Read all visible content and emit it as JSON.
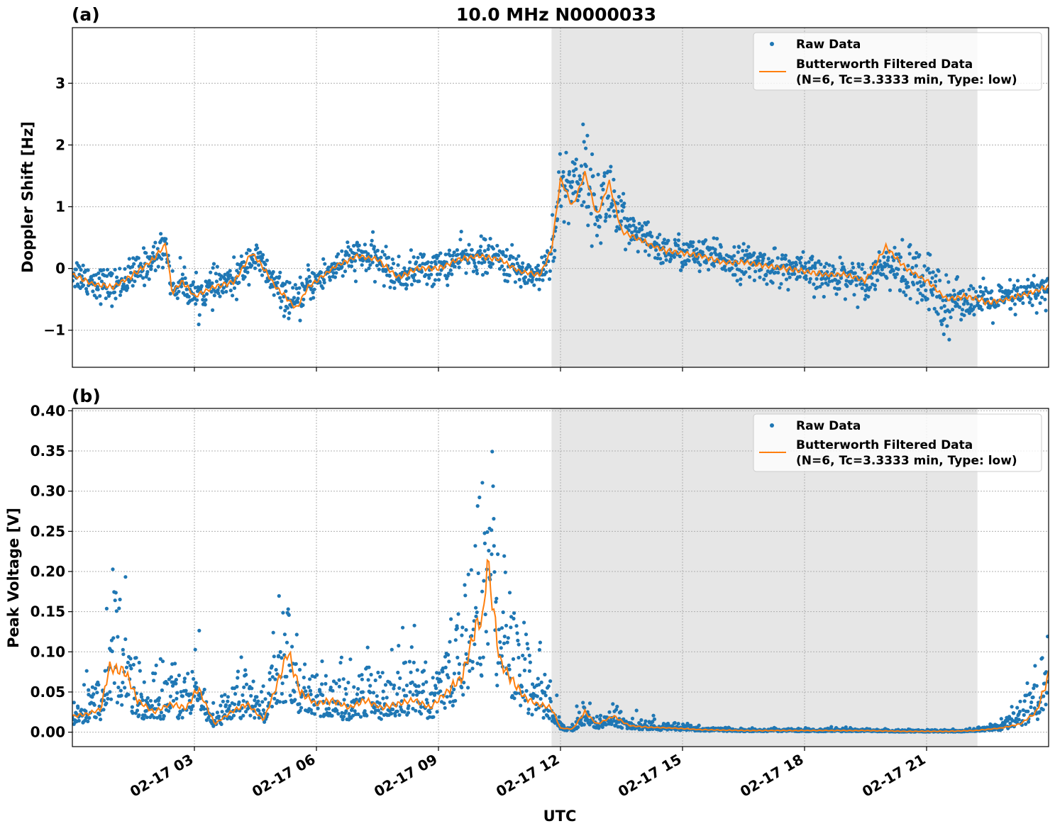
{
  "figure": {
    "title": "10.0 MHz N0000033",
    "xlabel": "UTC",
    "x_tick_labels": [
      "02-17 03",
      "02-17 06",
      "02-17 09",
      "02-17 12",
      "02-17 15",
      "02-17 18",
      "02-17 21"
    ],
    "shaded_interval_hours": [
      11.78,
      22.25
    ],
    "colors": {
      "raw": "#1f77b4",
      "filtered": "#ff7f0e",
      "shade": "#e6e6e6"
    },
    "legend": {
      "placement": "top-right",
      "raw_label": "Raw Data",
      "filtered_label_line1": "Butterworth Filtered Data",
      "filtered_label_line2": "(N=6, Tc=3.3333 min, Type: low)"
    }
  },
  "chart_data": [
    {
      "type": "scatter",
      "panel_label": "(a)",
      "title": "10.0 MHz N0000033",
      "ylabel": "Doppler Shift [Hz]",
      "xlabel": "",
      "x_unit": "hours UTC on 02-17",
      "xlim": [
        0,
        24
      ],
      "ylim": [
        -1.6,
        3.9
      ],
      "y_ticks": [
        -1,
        0,
        1,
        2,
        3
      ],
      "y_tick_labels": [
        "−1",
        "0",
        "1",
        "2",
        "3"
      ],
      "grid": true,
      "legend": "top-right",
      "series": [
        {
          "name": "Raw Data",
          "style": "points",
          "x": [
            0,
            0.5,
            1,
            1.5,
            2,
            2.3,
            2.45,
            2.7,
            3,
            3.5,
            4,
            4.4,
            4.6,
            5,
            5.3,
            5.5,
            5.8,
            6,
            6.5,
            7,
            7.5,
            8,
            8.5,
            9,
            9.5,
            10,
            10.5,
            11,
            11.5,
            11.78,
            12,
            12.3,
            12.6,
            12.9,
            13.2,
            13.5,
            14,
            14.5,
            15,
            15.5,
            16,
            16.5,
            17,
            17.5,
            18,
            18.5,
            19,
            19.5,
            20,
            20.5,
            21,
            21.5,
            22,
            22.5,
            23,
            23.5,
            24
          ],
          "y": [
            -0.05,
            -0.2,
            -0.3,
            -0.1,
            0.15,
            0.4,
            -0.35,
            -0.2,
            -0.45,
            -0.3,
            -0.2,
            0.2,
            0.1,
            -0.3,
            -0.5,
            -0.6,
            -0.25,
            -0.2,
            0.05,
            0.2,
            0.15,
            -0.15,
            0,
            0,
            0.15,
            0.2,
            0.15,
            -0.05,
            -0.1,
            0.3,
            1.3,
            1.4,
            1.6,
            0.9,
            1.3,
            0.65,
            0.5,
            0.3,
            0.25,
            0.2,
            0.15,
            0.1,
            0.05,
            0,
            -0.05,
            -0.15,
            -0.1,
            -0.2,
            0.1,
            -0.1,
            -0.3,
            -0.5,
            -0.5,
            -0.55,
            -0.5,
            -0.4,
            -0.35
          ]
        },
        {
          "name": "Butterworth Filtered Data",
          "style": "line",
          "x": [
            0,
            0.5,
            1,
            1.5,
            2,
            2.3,
            2.45,
            2.7,
            3,
            3.5,
            4,
            4.4,
            4.6,
            5,
            5.3,
            5.5,
            5.8,
            6,
            6.5,
            7,
            7.5,
            8,
            8.5,
            9,
            9.5,
            10,
            10.5,
            11,
            11.5,
            11.78,
            12,
            12.3,
            12.6,
            12.9,
            13.2,
            13.5,
            14,
            14.5,
            15,
            15.5,
            16,
            16.5,
            17,
            17.5,
            18,
            18.5,
            19,
            19.5,
            20,
            20.5,
            21,
            21.5,
            22,
            22.5,
            23,
            23.5,
            24
          ],
          "y": [
            -0.1,
            -0.25,
            -0.3,
            -0.1,
            0.15,
            0.4,
            -0.4,
            -0.2,
            -0.45,
            -0.3,
            -0.2,
            0.25,
            0.1,
            -0.3,
            -0.5,
            -0.65,
            -0.3,
            -0.2,
            0.05,
            0.2,
            0.15,
            -0.15,
            0,
            0,
            0.15,
            0.2,
            0.15,
            -0.05,
            -0.1,
            0.3,
            1.45,
            1.0,
            1.55,
            0.85,
            1.4,
            0.6,
            0.45,
            0.3,
            0.25,
            0.2,
            0.1,
            0.1,
            0.05,
            0,
            -0.05,
            -0.1,
            -0.1,
            -0.2,
            0.35,
            0,
            -0.2,
            -0.5,
            -0.45,
            -0.55,
            -0.5,
            -0.4,
            -0.3
          ]
        }
      ]
    },
    {
      "type": "scatter",
      "panel_label": "(b)",
      "ylabel": "Peak Voltage [V]",
      "xlabel": "UTC",
      "x_unit": "hours UTC on 02-17",
      "xlim": [
        0,
        24
      ],
      "ylim": [
        -0.018,
        0.403
      ],
      "y_ticks": [
        0,
        0.05,
        0.1,
        0.15,
        0.2,
        0.25,
        0.3,
        0.35,
        0.4
      ],
      "y_tick_labels": [
        "0.00",
        "0.05",
        "0.10",
        "0.15",
        "0.20",
        "0.25",
        "0.30",
        "0.35",
        "0.40"
      ],
      "grid": true,
      "legend": "top-right",
      "series": [
        {
          "name": "Raw Data",
          "style": "points",
          "x": [
            0,
            0.3,
            0.7,
            0.9,
            1.3,
            1.6,
            2,
            2.4,
            2.8,
            3.1,
            3.5,
            3.9,
            4.3,
            4.7,
            5,
            5.3,
            5.6,
            6,
            6.4,
            6.8,
            7.2,
            7.6,
            8,
            8.4,
            8.8,
            9.2,
            9.6,
            9.9,
            10.1,
            10.2,
            10.5,
            10.8,
            11.1,
            11.4,
            11.78,
            12,
            12.3,
            12.6,
            12.9,
            13.3,
            13.7,
            14.2,
            14.8,
            15.5,
            16.5,
            17.5,
            18.5,
            19.5,
            20.5,
            21.5,
            22.2,
            22.8,
            23.3,
            23.7,
            24
          ],
          "y": [
            0.02,
            0.025,
            0.03,
            0.08,
            0.07,
            0.04,
            0.03,
            0.04,
            0.035,
            0.05,
            0.01,
            0.03,
            0.04,
            0.02,
            0.06,
            0.08,
            0.05,
            0.035,
            0.04,
            0.03,
            0.045,
            0.035,
            0.04,
            0.045,
            0.03,
            0.06,
            0.08,
            0.12,
            0.15,
            0.21,
            0.1,
            0.07,
            0.05,
            0.04,
            0.03,
            0.005,
            0.004,
            0.02,
            0.01,
            0.015,
            0.008,
            0.006,
            0.005,
            0.003,
            0.002,
            0.002,
            0.002,
            0.002,
            0.001,
            0.001,
            0.002,
            0.005,
            0.015,
            0.03,
            0.07
          ]
        },
        {
          "name": "Butterworth Filtered Data",
          "style": "line",
          "x": [
            0,
            0.3,
            0.7,
            0.9,
            1.3,
            1.6,
            2,
            2.4,
            2.8,
            3.1,
            3.5,
            3.9,
            4.3,
            4.7,
            5,
            5.3,
            5.6,
            6,
            6.4,
            6.8,
            7.2,
            7.6,
            8,
            8.4,
            8.8,
            9.2,
            9.6,
            9.9,
            10.1,
            10.2,
            10.5,
            10.8,
            11.1,
            11.4,
            11.78,
            12,
            12.3,
            12.6,
            12.9,
            13.3,
            13.7,
            14.2,
            14.8,
            15.5,
            16.5,
            17.5,
            18.5,
            19.5,
            20.5,
            21.5,
            22.2,
            22.8,
            23.3,
            23.7,
            24
          ],
          "y": [
            0.02,
            0.022,
            0.028,
            0.08,
            0.075,
            0.04,
            0.025,
            0.035,
            0.03,
            0.055,
            0.01,
            0.025,
            0.035,
            0.015,
            0.055,
            0.1,
            0.05,
            0.035,
            0.04,
            0.03,
            0.04,
            0.03,
            0.035,
            0.04,
            0.03,
            0.05,
            0.07,
            0.13,
            0.14,
            0.215,
            0.09,
            0.065,
            0.045,
            0.035,
            0.03,
            0.005,
            0.004,
            0.025,
            0.01,
            0.02,
            0.008,
            0.006,
            0.005,
            0.003,
            0.002,
            0.002,
            0.002,
            0.002,
            0.001,
            0.001,
            0.002,
            0.005,
            0.01,
            0.025,
            0.07
          ]
        }
      ]
    }
  ]
}
